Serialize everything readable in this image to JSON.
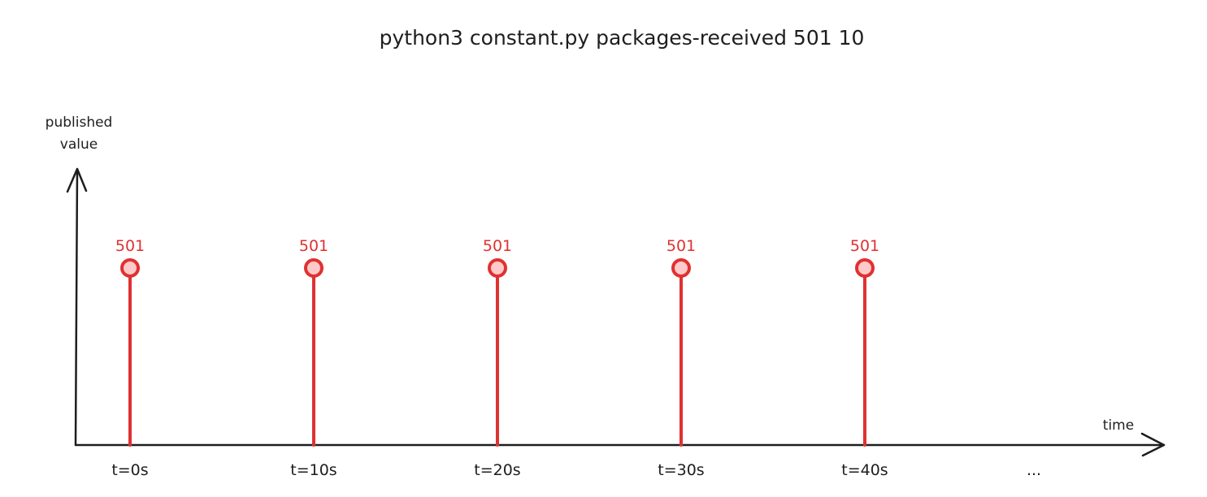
{
  "chart_data": {
    "type": "stem",
    "title": "python3 constant.py packages-received 501 10",
    "ylabel_lines": [
      "published",
      "value"
    ],
    "xlabel": "time",
    "categories": [
      "t=0s",
      "t=10s",
      "t=20s",
      "t=30s",
      "t=40s",
      "..."
    ],
    "x": [
      0,
      10,
      20,
      30,
      40
    ],
    "values": [
      501,
      501,
      501,
      501,
      501
    ],
    "data_labels": [
      "501",
      "501",
      "501",
      "501",
      "501"
    ],
    "colors": {
      "series": "#e03131",
      "marker_fill": "#ffc9c9",
      "axis": "#1e1e1e"
    },
    "grid": false
  }
}
